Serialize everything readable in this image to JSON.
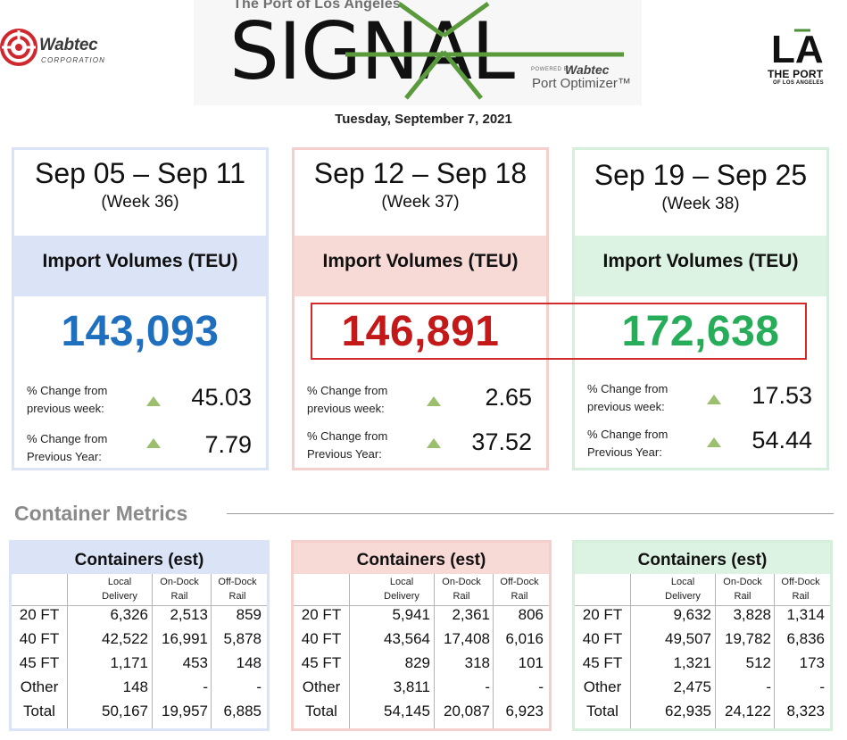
{
  "header": {
    "wabtec_logo": {
      "name": "Wabtec",
      "sub": "CORPORATION"
    },
    "signal_logo": {
      "tagline": "The Port of Los Angeles",
      "word": "SIGNAL",
      "powered_by": "POWERED BY",
      "powered_brand": "Wabtec",
      "product": "Port Optimizer™"
    },
    "port_logo": {
      "mark": "LA",
      "name": "THE PORT",
      "sub": "OF LOS ANGELES"
    },
    "report_date": "Tuesday, September 7, 2021"
  },
  "colors": {
    "blue": "#1f6fbf",
    "red": "#c41919",
    "green": "#27ad5a",
    "blue_tint": "#dbe3f7",
    "red_tint": "#f7d9d6",
    "green_tint": "#dcf2e2",
    "blue_border": "#dbe3f7",
    "red_border": "#f4cfcb",
    "green_border": "#d6efdd"
  },
  "weeks": [
    {
      "range": "Sep 05 – Sep 11",
      "week": "(Week 36)",
      "metric": "Import Volumes (TEU)",
      "value": "143,093",
      "change_week_label_1": "% Change from",
      "change_week_label_2": "previous week:",
      "change_week": "45.03",
      "change_year_label_1": "% Change from",
      "change_year_label_2": "Previous Year:",
      "change_year": "7.79"
    },
    {
      "range": "Sep 12 – Sep 18",
      "week": "(Week 37)",
      "metric": "Import Volumes (TEU)",
      "value": "146,891",
      "change_week_label_1": "% Change from",
      "change_week_label_2": "previous week:",
      "change_week": "2.65",
      "change_year_label_1": "% Change from",
      "change_year_label_2": "Previous Year:",
      "change_year": "37.52"
    },
    {
      "range": "Sep 19 – Sep 25",
      "week": "(Week 38)",
      "metric": "Import Volumes (TEU)",
      "value": "172,638",
      "change_week_label_1": "% Change from",
      "change_week_label_2": "previous week:",
      "change_week": "17.53",
      "change_year_label_1": "% Change from",
      "change_year_label_2": "Previous Year:",
      "change_year": "54.44"
    }
  ],
  "container_metrics": {
    "title": "Container Metrics",
    "table_title": "Containers (est)",
    "columns": [
      {
        "line1": "Local",
        "line2": "Delivery"
      },
      {
        "line1": "On-Dock",
        "line2": "Rail"
      },
      {
        "line1": "Off-Dock",
        "line2": "Rail"
      }
    ],
    "row_labels": [
      "20 FT",
      "40 FT",
      "45 FT",
      "Other",
      "Total"
    ],
    "tables": [
      {
        "rows": [
          [
            "6,326",
            "2,513",
            "859"
          ],
          [
            "42,522",
            "16,991",
            "5,878"
          ],
          [
            "1,171",
            "453",
            "148"
          ],
          [
            "148",
            "-",
            "-"
          ],
          [
            "50,167",
            "19,957",
            "6,885"
          ]
        ]
      },
      {
        "rows": [
          [
            "5,941",
            "2,361",
            "806"
          ],
          [
            "43,564",
            "17,408",
            "6,016"
          ],
          [
            "829",
            "318",
            "101"
          ],
          [
            "3,811",
            "-",
            "-"
          ],
          [
            "54,145",
            "20,087",
            "6,923"
          ]
        ]
      },
      {
        "rows": [
          [
            "9,632",
            "3,828",
            "1,314"
          ],
          [
            "49,507",
            "19,782",
            "6,836"
          ],
          [
            "1,321",
            "512",
            "173"
          ],
          [
            "2,475",
            "-",
            "-"
          ],
          [
            "62,935",
            "24,122",
            "8,323"
          ]
        ]
      }
    ]
  }
}
